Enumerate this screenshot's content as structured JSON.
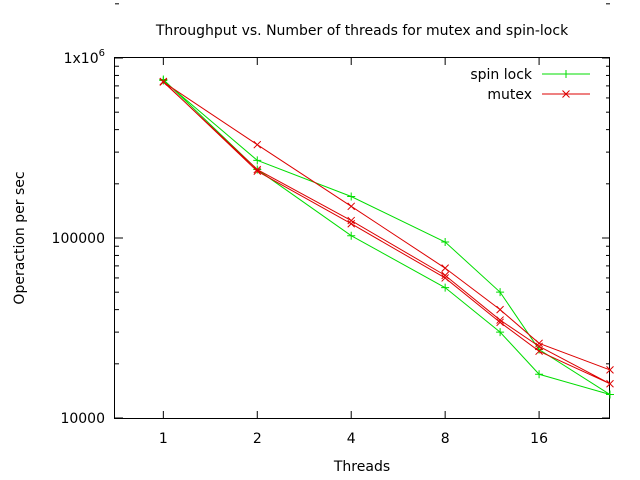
{
  "chart_data": {
    "type": "line",
    "title": "Throughput vs. Number of threads for mutex and spin-lock",
    "xlabel": "Threads",
    "ylabel": "Operaction per sec",
    "x_scale": "log2",
    "y_scale": "log10",
    "xlim": [
      0.7,
      27
    ],
    "ylim": [
      10000,
      1000000
    ],
    "x_ticks": [
      {
        "value": 1,
        "label": "1"
      },
      {
        "value": 2,
        "label": "2"
      },
      {
        "value": 4,
        "label": "4"
      },
      {
        "value": 8,
        "label": "8"
      },
      {
        "value": 16,
        "label": "16"
      }
    ],
    "y_ticks": [
      {
        "value": 10000,
        "label": "10000"
      },
      {
        "value": 100000,
        "label": "100000"
      },
      {
        "value": 1000000,
        "label": "1x10",
        "sup": "6"
      }
    ],
    "legend_position": "top-right",
    "series": [
      {
        "name": "spin lock",
        "color": "#00dd00",
        "marker": "plus",
        "points": [
          [
            1,
            750000
          ],
          [
            2,
            270000
          ],
          [
            4,
            170000
          ],
          [
            8,
            95000
          ],
          [
            12,
            50000
          ],
          [
            16,
            24000
          ],
          [
            27,
            13500
          ],
          [
            16,
            17500
          ],
          [
            12,
            30000
          ],
          [
            8,
            53000
          ],
          [
            4,
            103000
          ],
          [
            2,
            240000
          ],
          [
            1,
            760000
          ]
        ]
      },
      {
        "name": "mutex",
        "color": "#dd0000",
        "marker": "cross",
        "points": [
          [
            1,
            740000
          ],
          [
            2,
            235000
          ],
          [
            4,
            120000
          ],
          [
            8,
            60000
          ],
          [
            12,
            34000
          ],
          [
            16,
            23500
          ],
          [
            27,
            15500
          ],
          [
            16,
            25000
          ],
          [
            12,
            35000
          ],
          [
            8,
            62000
          ],
          [
            4,
            125000
          ],
          [
            2,
            240000
          ],
          [
            1,
            735000
          ],
          [
            2,
            330000
          ],
          [
            4,
            150000
          ],
          [
            8,
            68000
          ],
          [
            12,
            40000
          ],
          [
            16,
            26000
          ],
          [
            27,
            18500
          ]
        ]
      }
    ]
  }
}
